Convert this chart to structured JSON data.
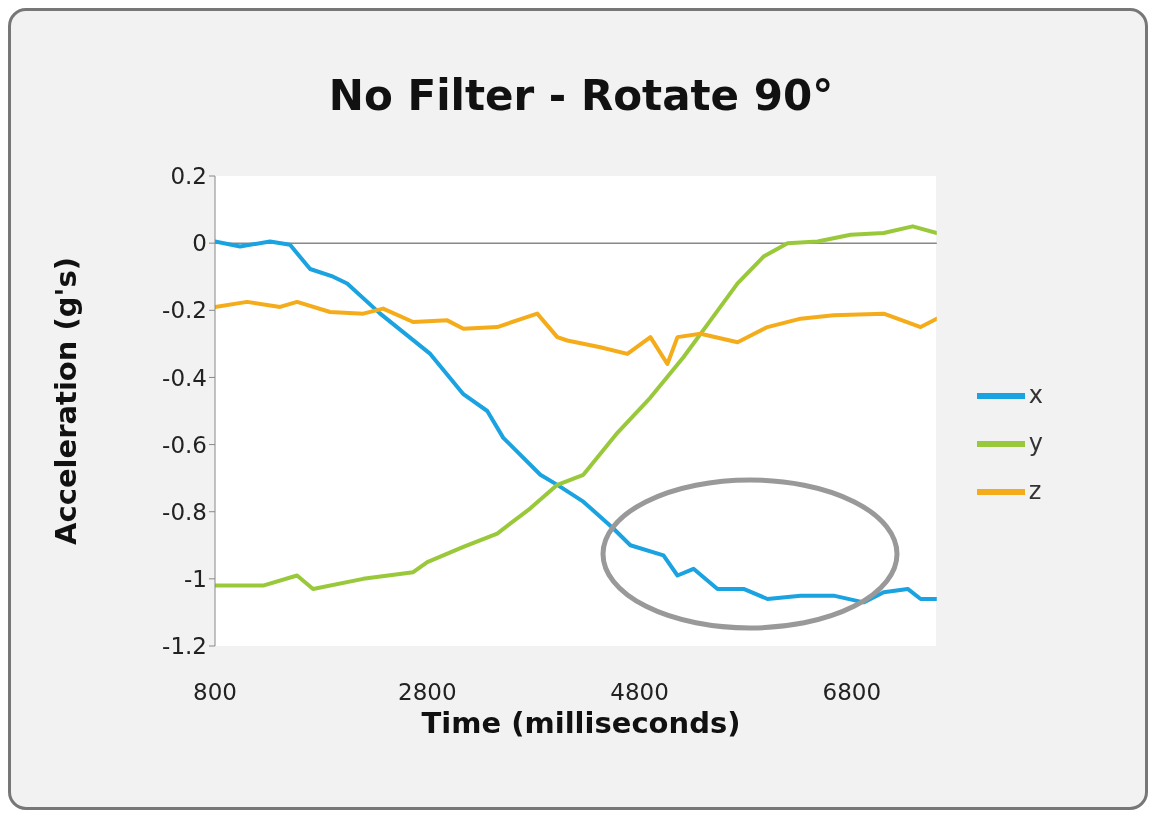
{
  "chart_data": {
    "type": "line",
    "title": "No Filter - Rotate 90°",
    "xlabel": "Time (milliseconds)",
    "ylabel": "Acceleration (g's)",
    "xlim": [
      800,
      7600
    ],
    "xticks": [
      800,
      2800,
      4800,
      6800
    ],
    "ylim": [
      -1.2,
      0.2
    ],
    "yticks": [
      0.2,
      0,
      -0.2,
      -0.4,
      -0.6,
      -0.8,
      -1,
      -1.2
    ],
    "legend": "right",
    "line_style": "solid",
    "ref_lines": [
      {
        "axis": "y",
        "value": 0,
        "color": "#888888"
      }
    ],
    "series": [
      {
        "name": "x",
        "color": "#1aa3e0",
        "x": [
          800,
          1036,
          1318,
          1507,
          1696,
          1913,
          2045,
          2356,
          2828,
          3140,
          3365,
          3516,
          3865,
          4025,
          4270,
          4553,
          4713,
          5025,
          5157,
          5308,
          5534,
          5780,
          6005,
          6317,
          6628,
          6911,
          7100,
          7326,
          7448,
          7600
        ],
        "values": [
          0.005,
          -0.01,
          0.005,
          -0.005,
          -0.077,
          -0.1,
          -0.12,
          -0.21,
          -0.33,
          -0.45,
          -0.5,
          -0.58,
          -0.69,
          -0.72,
          -0.77,
          -0.85,
          -0.9,
          -0.93,
          -0.99,
          -0.97,
          -1.03,
          -1.03,
          -1.06,
          -1.05,
          -1.05,
          -1.07,
          -1.04,
          -1.03,
          -1.06,
          -1.06
        ]
      },
      {
        "name": "y",
        "color": "#99c93a",
        "x": [
          800,
          1253,
          1573,
          1724,
          2196,
          2667,
          2800,
          3140,
          3459,
          3771,
          4025,
          4270,
          4591,
          4902,
          5213,
          5468,
          5723,
          5968,
          6194,
          6477,
          6788,
          7100,
          7373,
          7600
        ],
        "values": [
          -1.02,
          -1.02,
          -0.99,
          -1.03,
          -1.0,
          -0.98,
          -0.95,
          -0.905,
          -0.865,
          -0.79,
          -0.72,
          -0.69,
          -0.565,
          -0.46,
          -0.34,
          -0.23,
          -0.12,
          -0.04,
          0.0,
          0.005,
          0.025,
          0.03,
          0.05,
          0.03
        ]
      },
      {
        "name": "z",
        "color": "#f5ac1b",
        "x": [
          800,
          1102,
          1413,
          1573,
          1884,
          2196,
          2384,
          2667,
          2988,
          3140,
          3459,
          3836,
          4025,
          4119,
          4430,
          4685,
          4902,
          5062,
          5157,
          5374,
          5723,
          6005,
          6317,
          6628,
          7100,
          7448,
          7600
        ],
        "values": [
          -0.19,
          -0.175,
          -0.19,
          -0.175,
          -0.205,
          -0.21,
          -0.195,
          -0.235,
          -0.23,
          -0.255,
          -0.25,
          -0.21,
          -0.28,
          -0.29,
          -0.31,
          -0.33,
          -0.28,
          -0.36,
          -0.28,
          -0.27,
          -0.295,
          -0.25,
          -0.225,
          -0.215,
          -0.21,
          -0.25,
          -0.225
        ]
      }
    ]
  }
}
